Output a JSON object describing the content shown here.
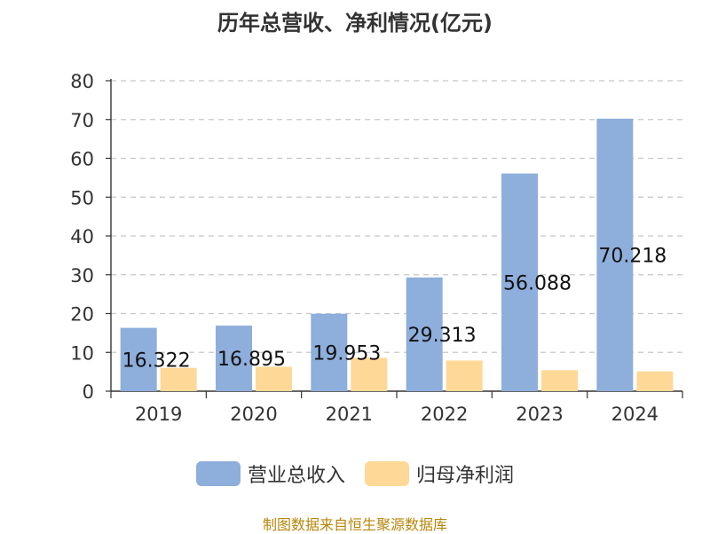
{
  "chart_data": {
    "type": "bar",
    "title": "历年总营收、净利情况(亿元)",
    "categories": [
      "2019",
      "2020",
      "2021",
      "2022",
      "2023",
      "2024"
    ],
    "series": [
      {
        "name": "营业总收入",
        "color": "#8eaedc",
        "values": [
          16.322,
          16.895,
          19.953,
          29.313,
          56.088,
          70.218
        ]
      },
      {
        "name": "归母净利润",
        "color": "#fdd897",
        "values": [
          6.0,
          6.3,
          8.6,
          7.9,
          5.4,
          5.1
        ]
      }
    ],
    "data_labels": [
      "16.322",
      "16.895",
      "19.953",
      "29.313",
      "56.088",
      "70.218"
    ],
    "yticks": [
      "0",
      "10",
      "20",
      "30",
      "40",
      "50",
      "60",
      "70",
      "80"
    ],
    "ylim": [
      0,
      80
    ],
    "grid": true,
    "legend_position": "bottom"
  },
  "footer": {
    "source": "制图数据来自恒生聚源数据库"
  }
}
